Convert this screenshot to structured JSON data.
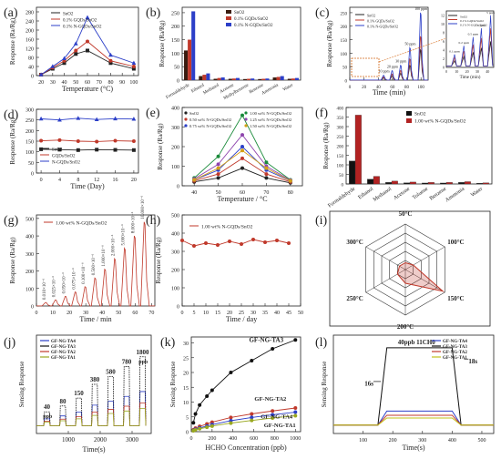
{
  "panels": [
    {
      "id": "a",
      "label": "(a)",
      "type": "line",
      "xlabel": "Temperature (°C)",
      "ylabel": "Response (Ra/Rg)",
      "x": [
        20,
        30,
        40,
        50,
        60,
        80,
        100
      ],
      "xticks": [
        20,
        30,
        40,
        50,
        60,
        70,
        80,
        90,
        100
      ],
      "xlim": [
        16,
        104
      ],
      "ylim": [
        0,
        300
      ],
      "yticks": [
        0,
        40,
        80,
        120,
        160,
        200,
        240,
        280
      ],
      "series": [
        {
          "name": "SnO2",
          "color": "#222222",
          "marker": "square",
          "values": [
            4,
            30,
            55,
            95,
            110,
            55,
            30
          ]
        },
        {
          "name": "0.1% GQDs/SnO2",
          "color": "#c0392b",
          "marker": "circle",
          "values": [
            4,
            35,
            65,
            110,
            150,
            65,
            40
          ]
        },
        {
          "name": "0.1% N-GQDs/SnO2",
          "color": "#2c3fc8",
          "marker": "triangle",
          "values": [
            4,
            40,
            75,
            140,
            255,
            90,
            55
          ]
        }
      ]
    },
    {
      "id": "b",
      "label": "(b)",
      "type": "bar",
      "ylabel": "Response (Ra/Rg)",
      "categories": [
        "Formaldehyde",
        "Ethanol",
        "Methanol",
        "Acetone",
        "Methylbenzene",
        "Benzene",
        "Ammonia",
        "Water"
      ],
      "ylim": [
        0,
        270
      ],
      "yticks": [
        0,
        50,
        100,
        150,
        200,
        250
      ],
      "series": [
        {
          "name": "SnO2",
          "color": "#3a1c10",
          "values": [
            110,
            15,
            5,
            5,
            4,
            4,
            10,
            5
          ]
        },
        {
          "name": "0.1% GQDs/SnO2",
          "color": "#c0392b",
          "values": [
            150,
            20,
            8,
            6,
            5,
            5,
            12,
            6
          ]
        },
        {
          "name": "0.1% N-GQDs/SnO2",
          "color": "#2c3fc8",
          "values": [
            255,
            25,
            10,
            8,
            6,
            6,
            15,
            8
          ]
        }
      ]
    },
    {
      "id": "c",
      "label": "(c)",
      "type": "line",
      "xlabel": "Time (min)",
      "ylabel": "Response (Ra/Rg)",
      "xticks": [
        0,
        20,
        40,
        60,
        80,
        100
      ],
      "yticks": [
        0,
        50,
        100,
        150,
        200,
        250
      ],
      "xlim": [
        0,
        110
      ],
      "ylim": [
        0,
        270
      ],
      "series": [
        {
          "name": "SnO2",
          "color": "#222222"
        },
        {
          "name": "0.1% GQDs/SnO2",
          "color": "#c0392b"
        },
        {
          "name": "0.1% N-GQDs/SnO2",
          "color": "#2c3fc8"
        }
      ],
      "pulses": [
        {
          "t": 48,
          "peak": 18,
          "label": "10 ppm"
        },
        {
          "t": 60,
          "peak": 35,
          "label": "20 ppm"
        },
        {
          "t": 72,
          "peak": 55,
          "label": "30 ppm"
        },
        {
          "t": 85,
          "peak": 120,
          "label": "50 ppm"
        },
        {
          "t": 100,
          "peak": 250,
          "label": "100 ppm"
        }
      ],
      "inset": {
        "xlabel": "Time (min)",
        "xticks": [
          0,
          10,
          20,
          30,
          40
        ],
        "yticks": [
          0,
          2,
          4,
          6,
          8,
          10,
          12
        ],
        "pulses": [
          {
            "t": 8,
            "peak": 3,
            "label": "0.1 ppm"
          },
          {
            "t": 17,
            "peak": 5,
            "label": "0.2 ppm"
          },
          {
            "t": 26,
            "peak": 7,
            "label": "0.5 ppm"
          },
          {
            "t": 34,
            "peak": 9,
            "label": "1 ppm"
          },
          {
            "t": 43,
            "peak": 12,
            "label": "5 ppm"
          }
        ],
        "series": [
          {
            "name": "SnO2",
            "color": "#222222"
          },
          {
            "name": "0.1% GQDs/SnO2",
            "color": "#c0392b"
          },
          {
            "name": "0.1% N-GQDs/SnO2",
            "color": "#2c3fc8"
          }
        ]
      }
    },
    {
      "id": "d",
      "label": "(d)",
      "type": "line",
      "xlabel": "Time (Day)",
      "ylabel": "Response (Ra/Rg)",
      "x": [
        0,
        4,
        8,
        12,
        16,
        20
      ],
      "xticks": [
        0,
        4,
        8,
        12,
        16,
        20
      ],
      "yticks": [
        0,
        50,
        100,
        150,
        200,
        250,
        300
      ],
      "xlim": [
        -1,
        21
      ],
      "ylim": [
        0,
        300
      ],
      "series": [
        {
          "name": "SnO2",
          "color": "#222222",
          "marker": "square",
          "values": [
            112,
            110,
            108,
            110,
            109,
            108
          ]
        },
        {
          "name": "GQDs/SnO2",
          "color": "#c0392b",
          "marker": "circle",
          "values": [
            152,
            155,
            150,
            148,
            152,
            150
          ]
        },
        {
          "name": "N-GQDs/SnO2",
          "color": "#2c3fc8",
          "marker": "triangle",
          "values": [
            255,
            250,
            258,
            252,
            256,
            254
          ]
        }
      ]
    },
    {
      "id": "e",
      "label": "(e)",
      "type": "line",
      "xlabel": "Temperature / °C",
      "ylabel": "Response (Ra/Rg)",
      "x": [
        40,
        50,
        60,
        70,
        80
      ],
      "xticks": [
        40,
        50,
        60,
        70,
        80
      ],
      "yticks": [
        0,
        100,
        200,
        300,
        400
      ],
      "xlim": [
        35,
        85
      ],
      "ylim": [
        0,
        400
      ],
      "series": [
        {
          "name": "SnO2",
          "color": "#222222",
          "values": [
            20,
            40,
            90,
            40,
            15
          ]
        },
        {
          "name": "0.50 wt% N-GQDs/SnO2",
          "color": "#c0392b",
          "values": [
            25,
            60,
            140,
            60,
            20
          ]
        },
        {
          "name": "0.75 wt% N-GQDs/SnO2",
          "color": "#2c3fc8",
          "values": [
            30,
            80,
            200,
            80,
            25
          ]
        },
        {
          "name": "1.00 wt% N-GQDs/SnO2",
          "color": "#1a8a3a",
          "values": [
            40,
            150,
            360,
            120,
            30
          ]
        },
        {
          "name": "1.25 wt% N-GQDs/SnO2",
          "color": "#8e44ad",
          "values": [
            35,
            110,
            260,
            100,
            28
          ]
        },
        {
          "name": "1.50 wt% N-GQDs/SnO2",
          "color": "#d4a017",
          "values": [
            30,
            90,
            180,
            90,
            25
          ]
        }
      ]
    },
    {
      "id": "f",
      "label": "(f)",
      "type": "bar",
      "ylabel": "Response (Ra/Rg)",
      "categories": [
        "Formaldehyde",
        "Ethanol",
        "Methanol",
        "Acetone",
        "Toluene",
        "Benzene",
        "Ammonia",
        "Water"
      ],
      "ylim": [
        0,
        400
      ],
      "yticks": [
        0,
        50,
        100,
        150,
        200,
        250,
        300,
        350,
        400
      ],
      "series": [
        {
          "name": "SnO2",
          "color": "#111111",
          "values": [
            120,
            25,
            8,
            6,
            5,
            5,
            8,
            4
          ]
        },
        {
          "name": "1.00 wt% N-GQDs/SnO2",
          "color": "#b22222",
          "values": [
            360,
            40,
            15,
            10,
            8,
            8,
            12,
            6
          ]
        }
      ]
    },
    {
      "id": "g",
      "label": "(g)",
      "type": "line",
      "xlabel": "Time / min",
      "ylabel": "Response (Ra/Rg)",
      "xticks": [
        0,
        10,
        20,
        30,
        40,
        50,
        60,
        70
      ],
      "yticks": [
        0,
        100,
        200,
        300,
        400,
        500
      ],
      "xlim": [
        0,
        72
      ],
      "ylim": [
        0,
        520
      ],
      "series": [
        {
          "name": "1.00 wt% N-GQDs/SnO2",
          "color": "#c0392b"
        }
      ],
      "pulses": [
        {
          "t": 6,
          "peak": 20,
          "label": "0.010×10⁻⁶"
        },
        {
          "t": 12,
          "peak": 35,
          "label": "0.025×10⁻⁶"
        },
        {
          "t": 18,
          "peak": 55,
          "label": "0.050×10⁻⁶"
        },
        {
          "t": 24,
          "peak": 80,
          "label": "0.075×10⁻⁶"
        },
        {
          "t": 30,
          "peak": 110,
          "label": "0.100×10⁻⁶"
        },
        {
          "t": 36,
          "peak": 160,
          "label": "0.500×10⁻⁶"
        },
        {
          "t": 42,
          "peak": 210,
          "label": "1.000×10⁻⁶"
        },
        {
          "t": 48,
          "peak": 270,
          "label": "2.000×10⁻⁶"
        },
        {
          "t": 54,
          "peak": 330,
          "label": "5.000×10⁻⁶"
        },
        {
          "t": 60,
          "peak": 400,
          "label": "8.000×10⁻⁶"
        },
        {
          "t": 66,
          "peak": 480,
          "label": "10.000×10⁻⁶"
        }
      ]
    },
    {
      "id": "h",
      "label": "(h)",
      "type": "line",
      "xlabel": "Time / day",
      "ylabel": "Response (Ra/Rg)",
      "x": [
        0,
        5,
        10,
        15,
        20,
        25,
        30,
        35,
        40,
        45
      ],
      "xticks": [
        0,
        5,
        10,
        15,
        20,
        25,
        30,
        35,
        40,
        45,
        50
      ],
      "yticks": [
        0,
        100,
        200,
        300,
        400,
        500
      ],
      "xlim": [
        0,
        50
      ],
      "ylim": [
        0,
        500
      ],
      "series": [
        {
          "name": "1.00 wt% N-GQDs/SnO2",
          "color": "#c0392b",
          "values": [
            360,
            330,
            345,
            335,
            355,
            340,
            365,
            350,
            360,
            345
          ]
        }
      ]
    },
    {
      "id": "i",
      "label": "(i)",
      "type": "radar",
      "axes": [
        "50°C",
        "100°C",
        "150°C",
        "200°C",
        "250°C",
        "300°C"
      ],
      "rings": 5,
      "values": [
        0.15,
        0.2,
        0.95,
        0.3,
        0.2,
        0.15
      ]
    },
    {
      "id": "j",
      "label": "(j)",
      "type": "line",
      "xlabel": "Time(s)",
      "ylabel": "Sensing Response",
      "xticks": [
        1000,
        2000,
        3000
      ],
      "xlim": [
        0,
        3600
      ],
      "ylim": [
        0,
        10
      ],
      "series": [
        {
          "name": "GF-NG-TA4",
          "color": "#2c3fc8"
        },
        {
          "name": "GF-NG-TA3",
          "color": "#111111"
        },
        {
          "name": "GF-NG-TA2",
          "color": "#c0392b"
        },
        {
          "name": "GF-NG-TA1",
          "color": "#9aa820"
        }
      ],
      "pulses": [
        {
          "t": 350,
          "peak": 2.2,
          "label": "40"
        },
        {
          "t": 850,
          "peak": 2.8,
          "label": "80"
        },
        {
          "t": 1350,
          "peak": 3.6,
          "label": "150"
        },
        {
          "t": 1850,
          "peak": 5.0,
          "label": "380"
        },
        {
          "t": 2350,
          "peak": 5.8,
          "label": "580"
        },
        {
          "t": 2850,
          "peak": 6.8,
          "label": "780"
        },
        {
          "t": 3350,
          "peak": 7.8,
          "label": "1800"
        }
      ],
      "unit_labels": [
        "ppb",
        "ppb"
      ]
    },
    {
      "id": "k",
      "label": "(k)",
      "type": "line",
      "xlabel": "HCHO Concentration (ppb)",
      "ylabel": "Sensing Response",
      "x": [
        20,
        40,
        80,
        150,
        200,
        380,
        580,
        780,
        1000
      ],
      "xticks": [
        0,
        200,
        400,
        600,
        800,
        1000
      ],
      "yticks": [
        0,
        5,
        10,
        15,
        20,
        25,
        30
      ],
      "xlim": [
        0,
        1050
      ],
      "ylim": [
        0,
        32
      ],
      "series": [
        {
          "name": "GF-NG-TA3",
          "color": "#111111",
          "values": [
            3,
            6,
            9,
            12,
            14,
            20,
            24,
            28,
            31
          ]
        },
        {
          "name": "GF-NG-TA2",
          "color": "#c0392b",
          "values": [
            0.6,
            1.2,
            1.8,
            2.6,
            3.2,
            4.8,
            6.0,
            7.0,
            8.0
          ]
        },
        {
          "name": "GF-NG-TA4",
          "color": "#2c3fc8",
          "values": [
            0.4,
            0.8,
            1.3,
            1.9,
            2.4,
            3.7,
            4.8,
            5.7,
            6.6
          ]
        },
        {
          "name": "GF-NG-TA1",
          "color": "#9aa820",
          "values": [
            0.3,
            0.6,
            1.0,
            1.5,
            1.9,
            2.9,
            3.8,
            4.6,
            5.4
          ]
        }
      ]
    },
    {
      "id": "l",
      "label": "(l)",
      "type": "line",
      "xlabel": "Time(s)",
      "ylabel": "Sensing Response",
      "xticks": [
        100,
        200,
        300,
        400,
        500
      ],
      "xlim": [
        0,
        540
      ],
      "ylim": [
        0,
        7
      ],
      "title_annotation": "40ppb 11CH0",
      "annotations": [
        "16s",
        "18s"
      ],
      "series": [
        {
          "name": "GF-NG-TA4",
          "color": "#2c3fc8",
          "plateau": 1.6
        },
        {
          "name": "GF-NG-TA3",
          "color": "#111111",
          "plateau": 6.1
        },
        {
          "name": "GF-NG-TA2",
          "color": "#c0392b",
          "plateau": 1.3
        },
        {
          "name": "GF-NG-TA1",
          "color": "#c2c21a",
          "plateau": 1.1
        }
      ]
    }
  ]
}
